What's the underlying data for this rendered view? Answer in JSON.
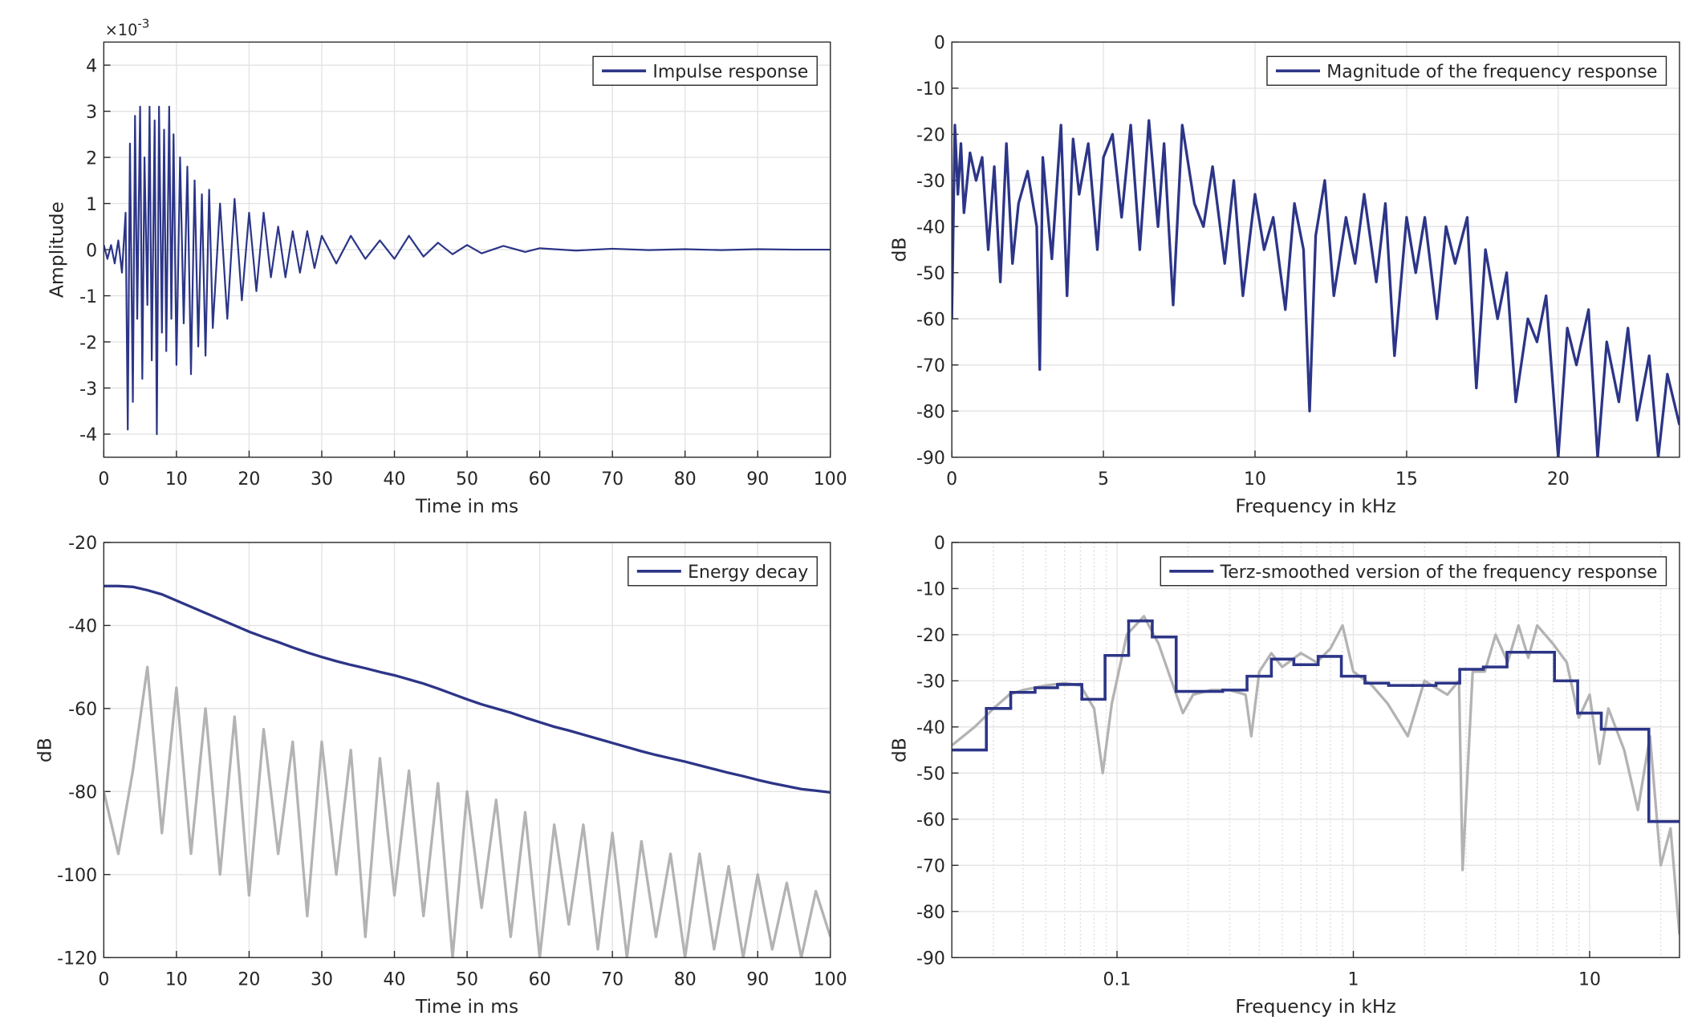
{
  "chart_data": [
    {
      "type": "line",
      "xlabel": "Time in ms",
      "ylabel": "Amplitude",
      "y_multiplier": {
        "base": "×10",
        "exponent": "-3"
      },
      "xlim": [
        0,
        100
      ],
      "xticks": [
        0,
        10,
        20,
        30,
        40,
        50,
        60,
        70,
        80,
        90,
        100
      ],
      "ylim": [
        -4.5,
        4.5
      ],
      "yticks": [
        -4,
        -3,
        -2,
        -1,
        0,
        1,
        2,
        3,
        4
      ],
      "grid": true,
      "legend": "upper right",
      "x": [
        0,
        0.5,
        1,
        1.5,
        2,
        2.5,
        3,
        3.3,
        3.6,
        4,
        4.3,
        4.6,
        5,
        5.3,
        5.6,
        6,
        6.3,
        6.6,
        7,
        7.3,
        7.6,
        8,
        8.3,
        8.6,
        9,
        9.3,
        9.6,
        10,
        10.5,
        11,
        11.5,
        12,
        12.5,
        13,
        13.5,
        14,
        14.5,
        15,
        16,
        17,
        18,
        19,
        20,
        21,
        22,
        23,
        24,
        25,
        26,
        27,
        28,
        29,
        30,
        32,
        34,
        36,
        38,
        40,
        42,
        44,
        46,
        48,
        50,
        52,
        55,
        58,
        60,
        65,
        70,
        75,
        80,
        85,
        90,
        95,
        100
      ],
      "series": [
        {
          "name": "Impulse response",
          "color": "#2c3587",
          "values": [
            0.1,
            -0.2,
            0.1,
            -0.3,
            0.2,
            -0.5,
            0.8,
            -3.9,
            2.3,
            -3.3,
            2.9,
            -1.5,
            3.1,
            -2.8,
            2.0,
            -1.2,
            3.1,
            -2.4,
            2.8,
            -4.0,
            3.1,
            -1.8,
            2.6,
            -2.2,
            3.1,
            -1.5,
            2.5,
            -2.5,
            2.0,
            -1.6,
            1.8,
            -2.7,
            1.5,
            -2.1,
            1.2,
            -2.3,
            1.3,
            -1.7,
            1.0,
            -1.5,
            1.1,
            -1.1,
            0.8,
            -0.9,
            0.8,
            -0.6,
            0.5,
            -0.6,
            0.4,
            -0.5,
            0.4,
            -0.4,
            0.3,
            -0.3,
            0.3,
            -0.2,
            0.2,
            -0.2,
            0.3,
            -0.15,
            0.15,
            -0.1,
            0.1,
            -0.08,
            0.08,
            -0.05,
            0.03,
            -0.02,
            0.02,
            -0.01,
            0.01,
            -0.01,
            0.01,
            0,
            0
          ]
        }
      ]
    },
    {
      "type": "line",
      "xlabel": "Frequency in kHz",
      "ylabel": "dB",
      "xlim": [
        0,
        24
      ],
      "xticks": [
        0,
        5,
        10,
        15,
        20
      ],
      "ylim": [
        -90,
        0
      ],
      "yticks": [
        -90,
        -80,
        -70,
        -60,
        -50,
        -40,
        -30,
        -20,
        -10,
        0
      ],
      "grid": true,
      "legend": "upper right",
      "x": [
        0,
        0.1,
        0.2,
        0.3,
        0.4,
        0.6,
        0.8,
        1.0,
        1.2,
        1.4,
        1.6,
        1.8,
        2.0,
        2.2,
        2.5,
        2.8,
        2.9,
        3.0,
        3.3,
        3.6,
        3.8,
        4.0,
        4.2,
        4.5,
        4.8,
        5.0,
        5.3,
        5.6,
        5.9,
        6.2,
        6.5,
        6.8,
        7.0,
        7.3,
        7.6,
        8.0,
        8.3,
        8.6,
        9.0,
        9.3,
        9.6,
        10.0,
        10.3,
        10.6,
        11.0,
        11.3,
        11.6,
        11.8,
        12.0,
        12.3,
        12.6,
        13.0,
        13.3,
        13.6,
        14.0,
        14.3,
        14.6,
        15.0,
        15.3,
        15.6,
        16.0,
        16.3,
        16.6,
        17.0,
        17.3,
        17.6,
        18.0,
        18.3,
        18.6,
        19.0,
        19.3,
        19.6,
        20.0,
        20.3,
        20.6,
        21.0,
        21.3,
        21.6,
        22.0,
        22.3,
        22.6,
        23.0,
        23.3,
        23.6,
        24.0
      ],
      "series": [
        {
          "name": "Magnitude of the frequency response",
          "color": "#2c3587",
          "values": [
            -60,
            -18,
            -33,
            -22,
            -37,
            -24,
            -30,
            -25,
            -45,
            -27,
            -52,
            -22,
            -48,
            -35,
            -28,
            -40,
            -71,
            -25,
            -47,
            -18,
            -55,
            -21,
            -33,
            -22,
            -45,
            -25,
            -20,
            -38,
            -18,
            -45,
            -17,
            -40,
            -22,
            -57,
            -18,
            -35,
            -40,
            -27,
            -48,
            -30,
            -55,
            -33,
            -45,
            -38,
            -58,
            -35,
            -45,
            -80,
            -42,
            -30,
            -55,
            -38,
            -48,
            -33,
            -52,
            -35,
            -68,
            -38,
            -50,
            -38,
            -60,
            -40,
            -48,
            -38,
            -75,
            -45,
            -60,
            -50,
            -78,
            -60,
            -65,
            -55,
            -90,
            -62,
            -70,
            -58,
            -90,
            -65,
            -78,
            -62,
            -82,
            -68,
            -90,
            -72,
            -83
          ]
        }
      ]
    },
    {
      "type": "line",
      "xlabel": "Time in ms",
      "ylabel": "dB",
      "xlim": [
        0,
        100
      ],
      "xticks": [
        0,
        10,
        20,
        30,
        40,
        50,
        60,
        70,
        80,
        90,
        100
      ],
      "ylim": [
        -120,
        -20
      ],
      "yticks": [
        -120,
        -100,
        -80,
        -60,
        -40,
        -20
      ],
      "grid": true,
      "legend": "upper right",
      "x": [
        0,
        2,
        4,
        6,
        8,
        10,
        12,
        14,
        16,
        18,
        20,
        22,
        24,
        26,
        28,
        30,
        32,
        34,
        36,
        38,
        40,
        42,
        44,
        46,
        48,
        50,
        52,
        54,
        56,
        58,
        60,
        62,
        64,
        66,
        68,
        70,
        72,
        74,
        76,
        78,
        80,
        82,
        84,
        86,
        88,
        90,
        92,
        94,
        96,
        98,
        100
      ],
      "series": [
        {
          "name": "Energy decay",
          "color": "#2c3587",
          "values": [
            -30.5,
            -30.5,
            -30.7,
            -31.5,
            -32.5,
            -34,
            -35.5,
            -37,
            -38.5,
            -40,
            -41.5,
            -42.8,
            -44,
            -45.3,
            -46.5,
            -47.6,
            -48.6,
            -49.5,
            -50.3,
            -51.2,
            -52,
            -53,
            -54,
            -55.2,
            -56.5,
            -57.8,
            -59,
            -60,
            -61,
            -62.2,
            -63.3,
            -64.4,
            -65.3,
            -66.3,
            -67.3,
            -68.3,
            -69.3,
            -70.3,
            -71.2,
            -72,
            -72.8,
            -73.7,
            -74.6,
            -75.5,
            -76.3,
            -77.2,
            -78,
            -78.7,
            -79.4,
            -79.8,
            -80.2
          ]
        },
        {
          "color": "#b3b3b3",
          "values": [
            -80,
            -95,
            -75,
            -50,
            -90,
            -55,
            -95,
            -60,
            -100,
            -62,
            -105,
            -65,
            -95,
            -68,
            -110,
            -68,
            -100,
            -70,
            -115,
            -72,
            -105,
            -75,
            -110,
            -78,
            -120,
            -80,
            -108,
            -82,
            -115,
            -85,
            -120,
            -88,
            -112,
            -88,
            -118,
            -90,
            -120,
            -92,
            -115,
            -95,
            -120,
            -95,
            -118,
            -98,
            -120,
            -100,
            -118,
            -102,
            -120,
            -104,
            -115
          ]
        }
      ]
    },
    {
      "type": "line",
      "xlabel": "Frequency in kHz",
      "ylabel": "dB",
      "xscale": "log",
      "xlim": [
        0.02,
        24
      ],
      "xticks": [
        0.1,
        1,
        10
      ],
      "xminorticks": [
        0.03,
        0.04,
        0.05,
        0.06,
        0.07,
        0.08,
        0.09,
        0.2,
        0.3,
        0.4,
        0.5,
        0.6,
        0.7,
        0.8,
        0.9,
        2,
        3,
        4,
        5,
        6,
        7,
        8,
        9,
        20
      ],
      "ylim": [
        -90,
        0
      ],
      "yticks": [
        -90,
        -80,
        -70,
        -60,
        -50,
        -40,
        -30,
        -20,
        -10,
        0
      ],
      "grid": true,
      "legend": "upper right",
      "series": [
        {
          "name": "Terz-smoothed version of the frequency response",
          "color": "#2c3587",
          "type": "stairs",
          "x": [
            0.02,
            0.028,
            0.0355,
            0.045,
            0.056,
            0.071,
            0.089,
            0.112,
            0.141,
            0.178,
            0.28,
            0.355,
            0.45,
            0.56,
            0.71,
            0.89,
            1.12,
            1.41,
            1.78,
            2.24,
            2.82,
            3.55,
            4.47,
            7.1,
            8.9,
            11.2,
            17.8
          ],
          "values": [
            -45,
            -36,
            -32.5,
            -31.5,
            -30.8,
            -34,
            -24.5,
            -17,
            -20.5,
            -32.3,
            -32,
            -29,
            -25.3,
            -26.5,
            -24.7,
            -29,
            -30.5,
            -31,
            -31,
            -30.5,
            -27.5,
            -27,
            -23.8,
            -30,
            -37,
            -40.5,
            -60.5
          ]
        },
        {
          "color": "#b3b3b3",
          "x": [
            0.02,
            0.025,
            0.03,
            0.035,
            0.04,
            0.05,
            0.06,
            0.07,
            0.08,
            0.087,
            0.095,
            0.11,
            0.13,
            0.15,
            0.17,
            0.19,
            0.21,
            0.25,
            0.3,
            0.35,
            0.37,
            0.4,
            0.45,
            0.5,
            0.6,
            0.7,
            0.8,
            0.9,
            1.0,
            1.2,
            1.4,
            1.7,
            2.0,
            2.5,
            2.8,
            2.9,
            3.2,
            3.6,
            4.0,
            4.5,
            5,
            5.5,
            6,
            7,
            8,
            9,
            10,
            11,
            12,
            14,
            16,
            18,
            20,
            22,
            24
          ],
          "values": [
            -44,
            -40,
            -36,
            -33,
            -32,
            -31,
            -30.5,
            -31,
            -36,
            -50,
            -35,
            -20,
            -16,
            -22,
            -30,
            -37,
            -33,
            -32,
            -32,
            -33,
            -42,
            -28,
            -24,
            -27,
            -24,
            -26,
            -23,
            -18,
            -28,
            -31,
            -35,
            -42,
            -30,
            -33,
            -30,
            -71,
            -28,
            -28,
            -20,
            -26,
            -18,
            -25,
            -18,
            -22,
            -26,
            -38,
            -33,
            -48,
            -36,
            -45,
            -58,
            -42,
            -70,
            -62,
            -85
          ]
        }
      ]
    }
  ]
}
